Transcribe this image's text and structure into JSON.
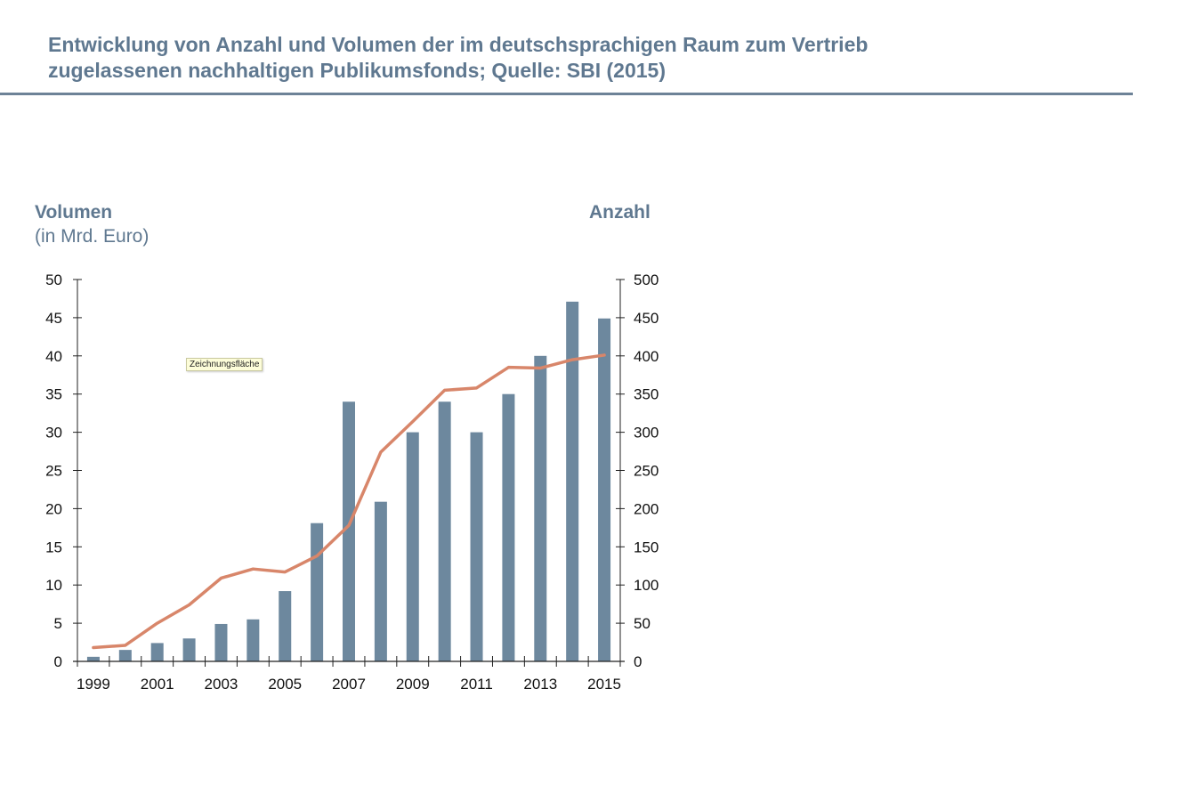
{
  "header": {
    "title_line1": "Entwicklung von Anzahl und Volumen der im deutschsprachigen Raum zum Vertrieb",
    "title_line2": "zugelassenen nachhaltigen Publikumsfonds; Quelle: SBI (2015)"
  },
  "tooltip": "Zeichnungsfläche",
  "colors": {
    "bar": "#6d889e",
    "line": "#d8866a",
    "title": "#5f7890"
  },
  "chart_data": {
    "type": "bar",
    "title": "Entwicklung von Anzahl und Volumen der im deutschsprachigen Raum zum Vertrieb zugelassenen nachhaltigen Publikumsfonds; Quelle: SBI (2015)",
    "ylabel_left": "Volumen",
    "ylabel_left_sub": "(in Mrd. Euro)",
    "ylabel_right": "Anzahl",
    "categories": [
      "1999",
      "2000",
      "2001",
      "2002",
      "2003",
      "2004",
      "2005",
      "2006",
      "2007",
      "2008",
      "2009",
      "2010",
      "2011",
      "2012",
      "2013",
      "2014",
      "2015"
    ],
    "xtick_labels": [
      "1999",
      "2001",
      "2003",
      "2005",
      "2007",
      "2009",
      "2011",
      "2013",
      "2015"
    ],
    "ylim_left": [
      0,
      50
    ],
    "ylim_right": [
      0,
      500
    ],
    "yticks_left": [
      "0",
      "5",
      "10",
      "15",
      "20",
      "25",
      "30",
      "35",
      "40",
      "45",
      "50"
    ],
    "yticks_right": [
      "0",
      "50",
      "100",
      "150",
      "200",
      "250",
      "300",
      "350",
      "400",
      "450",
      "500"
    ],
    "series": [
      {
        "name": "Volumen",
        "type": "bar",
        "axis": "left",
        "values": [
          0.6,
          1.5,
          2.4,
          3.0,
          4.9,
          5.5,
          9.2,
          18.1,
          34,
          20.9,
          30,
          34,
          30,
          35,
          40,
          47.1,
          44.9
        ]
      },
      {
        "name": "Anzahl",
        "type": "line",
        "axis": "right",
        "values": [
          18,
          21,
          50,
          74,
          109,
          121,
          117,
          138,
          178,
          274,
          314,
          355,
          358,
          385,
          384,
          395,
          401
        ]
      }
    ],
    "grid": false,
    "legend": "none"
  }
}
